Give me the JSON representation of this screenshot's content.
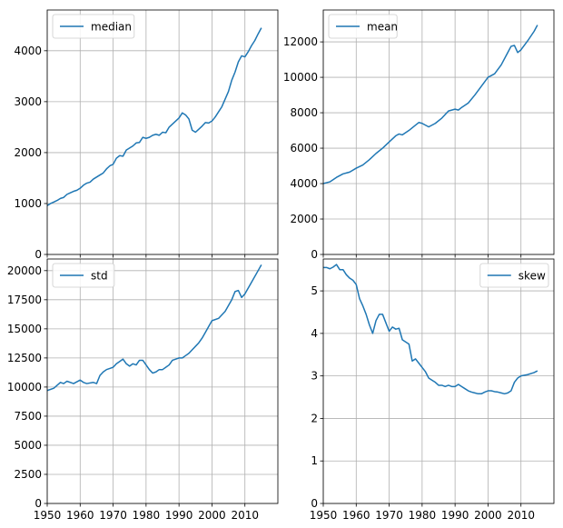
{
  "chart_data": [
    {
      "type": "line",
      "title": "",
      "xlabel": "",
      "ylabel": "",
      "xlim": [
        1950,
        2020
      ],
      "ylim": [
        0,
        4800
      ],
      "xticks": [
        1950,
        1960,
        1970,
        1980,
        1990,
        2000,
        2010
      ],
      "yticks": [
        0,
        1000,
        2000,
        3000,
        4000
      ],
      "grid": true,
      "legend_position": "upper left",
      "color": "#1f77b4",
      "series": [
        {
          "name": "median",
          "x": [
            1950,
            1951,
            1952,
            1953,
            1954,
            1955,
            1956,
            1957,
            1958,
            1959,
            1960,
            1961,
            1962,
            1963,
            1964,
            1965,
            1966,
            1967,
            1968,
            1969,
            1970,
            1971,
            1972,
            1973,
            1974,
            1975,
            1976,
            1977,
            1978,
            1979,
            1980,
            1981,
            1982,
            1983,
            1984,
            1985,
            1986,
            1987,
            1988,
            1989,
            1990,
            1991,
            1992,
            1993,
            1994,
            1995,
            1996,
            1997,
            1998,
            1999,
            2000,
            2001,
            2002,
            2003,
            2004,
            2005,
            2006,
            2007,
            2008,
            2009,
            2010,
            2011,
            2012,
            2013,
            2014,
            2015
          ],
          "values": [
            960,
            1000,
            1030,
            1060,
            1100,
            1120,
            1180,
            1210,
            1240,
            1260,
            1300,
            1360,
            1400,
            1420,
            1480,
            1520,
            1560,
            1600,
            1680,
            1740,
            1770,
            1890,
            1940,
            1930,
            2050,
            2090,
            2130,
            2190,
            2200,
            2300,
            2280,
            2300,
            2340,
            2360,
            2340,
            2400,
            2390,
            2500,
            2560,
            2620,
            2680,
            2780,
            2740,
            2660,
            2440,
            2400,
            2460,
            2520,
            2590,
            2580,
            2620,
            2700,
            2800,
            2900,
            3050,
            3200,
            3420,
            3580,
            3780,
            3900,
            3880,
            3980,
            4100,
            4200,
            4330,
            4450
          ]
        }
      ]
    },
    {
      "type": "line",
      "title": "",
      "xlabel": "",
      "ylabel": "",
      "xlim": [
        1950,
        2020
      ],
      "ylim": [
        0,
        13800
      ],
      "xticks": [
        1950,
        1960,
        1970,
        1980,
        1990,
        2000,
        2010
      ],
      "yticks": [
        0,
        2000,
        4000,
        6000,
        8000,
        10000,
        12000
      ],
      "grid": true,
      "legend_position": "upper left",
      "color": "#1f77b4",
      "series": [
        {
          "name": "mean",
          "x": [
            1950,
            1952,
            1954,
            1956,
            1958,
            1960,
            1962,
            1964,
            1966,
            1968,
            1970,
            1972,
            1973,
            1974,
            1976,
            1978,
            1979,
            1980,
            1982,
            1984,
            1986,
            1988,
            1990,
            1991,
            1992,
            1994,
            1996,
            1998,
            2000,
            2002,
            2004,
            2006,
            2007,
            2008,
            2009,
            2010,
            2012,
            2014,
            2015
          ],
          "values": [
            4000,
            4100,
            4350,
            4550,
            4650,
            4870,
            5050,
            5350,
            5700,
            6000,
            6350,
            6700,
            6800,
            6750,
            7000,
            7300,
            7450,
            7400,
            7200,
            7400,
            7700,
            8100,
            8200,
            8150,
            8300,
            8550,
            9000,
            9500,
            10000,
            10200,
            10700,
            11400,
            11750,
            11800,
            11400,
            11550,
            12050,
            12600,
            12950
          ]
        }
      ]
    },
    {
      "type": "line",
      "title": "",
      "xlabel": "",
      "ylabel": "",
      "xlim": [
        1950,
        2020
      ],
      "ylim": [
        0,
        21000
      ],
      "xticks": [
        1950,
        1960,
        1970,
        1980,
        1990,
        2000,
        2010
      ],
      "yticks": [
        0,
        2500,
        5000,
        7500,
        10000,
        12500,
        15000,
        17500,
        20000
      ],
      "grid": true,
      "legend_position": "upper left",
      "color": "#1f77b4",
      "series": [
        {
          "name": "std",
          "x": [
            1950,
            1952,
            1954,
            1955,
            1956,
            1958,
            1960,
            1961,
            1962,
            1964,
            1965,
            1966,
            1967,
            1968,
            1969,
            1970,
            1971,
            1972,
            1973,
            1974,
            1975,
            1976,
            1977,
            1978,
            1979,
            1980,
            1981,
            1982,
            1983,
            1984,
            1985,
            1986,
            1987,
            1988,
            1989,
            1990,
            1991,
            1992,
            1993,
            1994,
            1995,
            1996,
            1997,
            1998,
            1999,
            2000,
            2002,
            2003,
            2004,
            2005,
            2006,
            2007,
            2008,
            2009,
            2010,
            2012,
            2014,
            2015
          ],
          "values": [
            9700,
            9900,
            10400,
            10300,
            10500,
            10300,
            10600,
            10400,
            10300,
            10400,
            10300,
            11000,
            11300,
            11500,
            11600,
            11700,
            12000,
            12200,
            12400,
            12000,
            11800,
            12000,
            11900,
            12300,
            12300,
            11900,
            11500,
            11200,
            11300,
            11500,
            11500,
            11700,
            11900,
            12300,
            12400,
            12500,
            12500,
            12700,
            12900,
            13200,
            13500,
            13800,
            14200,
            14700,
            15200,
            15700,
            15900,
            16200,
            16500,
            17000,
            17500,
            18200,
            18300,
            17700,
            18000,
            19000,
            20000,
            20500
          ]
        }
      ]
    },
    {
      "type": "line",
      "title": "",
      "xlabel": "",
      "ylabel": "",
      "xlim": [
        1950,
        2020
      ],
      "ylim": [
        0,
        5.75
      ],
      "xticks": [
        1950,
        1960,
        1970,
        1980,
        1990,
        2000,
        2010
      ],
      "yticks": [
        0,
        1,
        2,
        3,
        4,
        5
      ],
      "grid": true,
      "legend_position": "upper right",
      "color": "#1f77b4",
      "series": [
        {
          "name": "skew",
          "x": [
            1950,
            1951,
            1952,
            1953,
            1954,
            1955,
            1956,
            1957,
            1958,
            1959,
            1960,
            1961,
            1962,
            1963,
            1964,
            1965,
            1966,
            1967,
            1968,
            1969,
            1970,
            1971,
            1972,
            1973,
            1974,
            1975,
            1976,
            1977,
            1978,
            1979,
            1980,
            1981,
            1982,
            1983,
            1984,
            1985,
            1986,
            1987,
            1988,
            1989,
            1990,
            1991,
            1992,
            1993,
            1994,
            1995,
            1996,
            1997,
            1998,
            1999,
            2000,
            2001,
            2002,
            2003,
            2004,
            2005,
            2006,
            2007,
            2008,
            2009,
            2010,
            2012,
            2014,
            2015
          ],
          "values": [
            5.55,
            5.55,
            5.52,
            5.56,
            5.62,
            5.5,
            5.5,
            5.38,
            5.3,
            5.25,
            5.15,
            4.82,
            4.65,
            4.45,
            4.2,
            4.0,
            4.3,
            4.45,
            4.45,
            4.25,
            4.05,
            4.15,
            4.1,
            4.12,
            3.85,
            3.8,
            3.75,
            3.35,
            3.4,
            3.3,
            3.2,
            3.1,
            2.95,
            2.9,
            2.85,
            2.78,
            2.78,
            2.75,
            2.78,
            2.75,
            2.75,
            2.8,
            2.75,
            2.7,
            2.65,
            2.62,
            2.6,
            2.58,
            2.58,
            2.62,
            2.65,
            2.65,
            2.63,
            2.62,
            2.6,
            2.58,
            2.6,
            2.65,
            2.85,
            2.95,
            3.0,
            3.03,
            3.08,
            3.12
          ]
        }
      ]
    }
  ]
}
